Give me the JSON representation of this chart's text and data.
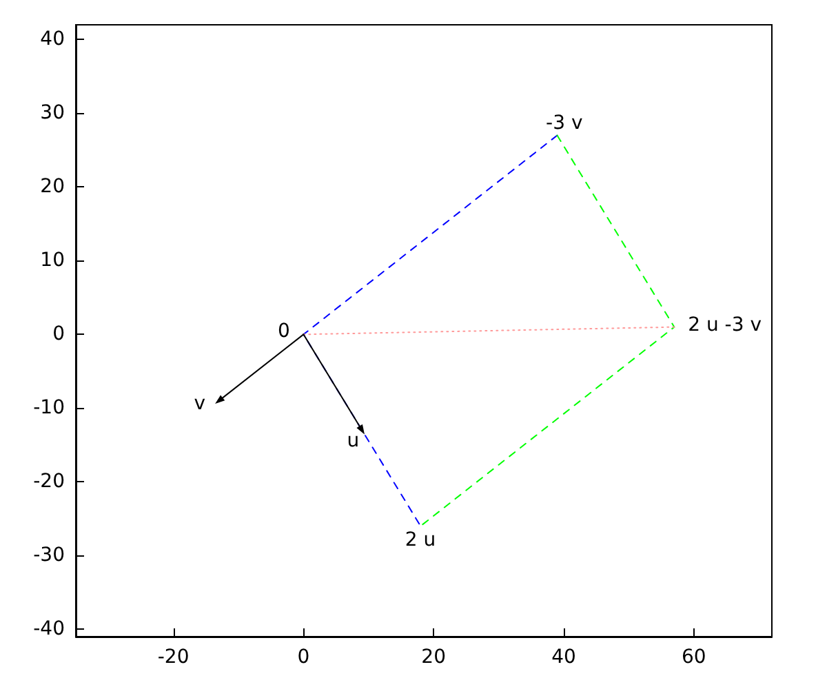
{
  "chart_data": {
    "type": "line",
    "xlim": [
      -35,
      72
    ],
    "ylim": [
      -41,
      42
    ],
    "xticks": [
      -20,
      0,
      20,
      40,
      60
    ],
    "yticks": [
      -40,
      -30,
      -20,
      -10,
      0,
      10,
      20,
      30,
      40
    ],
    "grid": false,
    "series": [
      {
        "color": "#0000ff",
        "line_style": "dashed",
        "marker": "none",
        "x": [
          39,
          0,
          18
        ],
        "values": [
          27,
          0,
          -26
        ]
      },
      {
        "color": "#00ff00",
        "line_style": "dashed",
        "marker": "none",
        "x": [
          39,
          57,
          18
        ],
        "values": [
          27,
          1,
          -26
        ]
      },
      {
        "color": "#ff9999",
        "line_style": "dotted",
        "marker": "none",
        "x": [
          0,
          57
        ],
        "values": [
          0,
          1
        ]
      },
      {
        "color": "#000000",
        "line_style": "solid",
        "marker": "triangle",
        "x": [
          0,
          9
        ],
        "values": [
          0,
          -13
        ]
      },
      {
        "color": "#000000",
        "line_style": "solid",
        "marker": "triangle",
        "x": [
          0,
          -13
        ],
        "values": [
          0,
          -9
        ]
      }
    ],
    "annotations": [
      {
        "text": "0",
        "x": 0,
        "y": 0
      },
      {
        "text": "u",
        "x": 9,
        "y": -13
      },
      {
        "text": "v",
        "x": -13,
        "y": -9
      },
      {
        "text": "2 u",
        "x": 18,
        "y": -26
      },
      {
        "text": "-3 v",
        "x": 39,
        "y": 27
      },
      {
        "text": "2 u -3 v",
        "x": 57,
        "y": 1
      }
    ]
  }
}
